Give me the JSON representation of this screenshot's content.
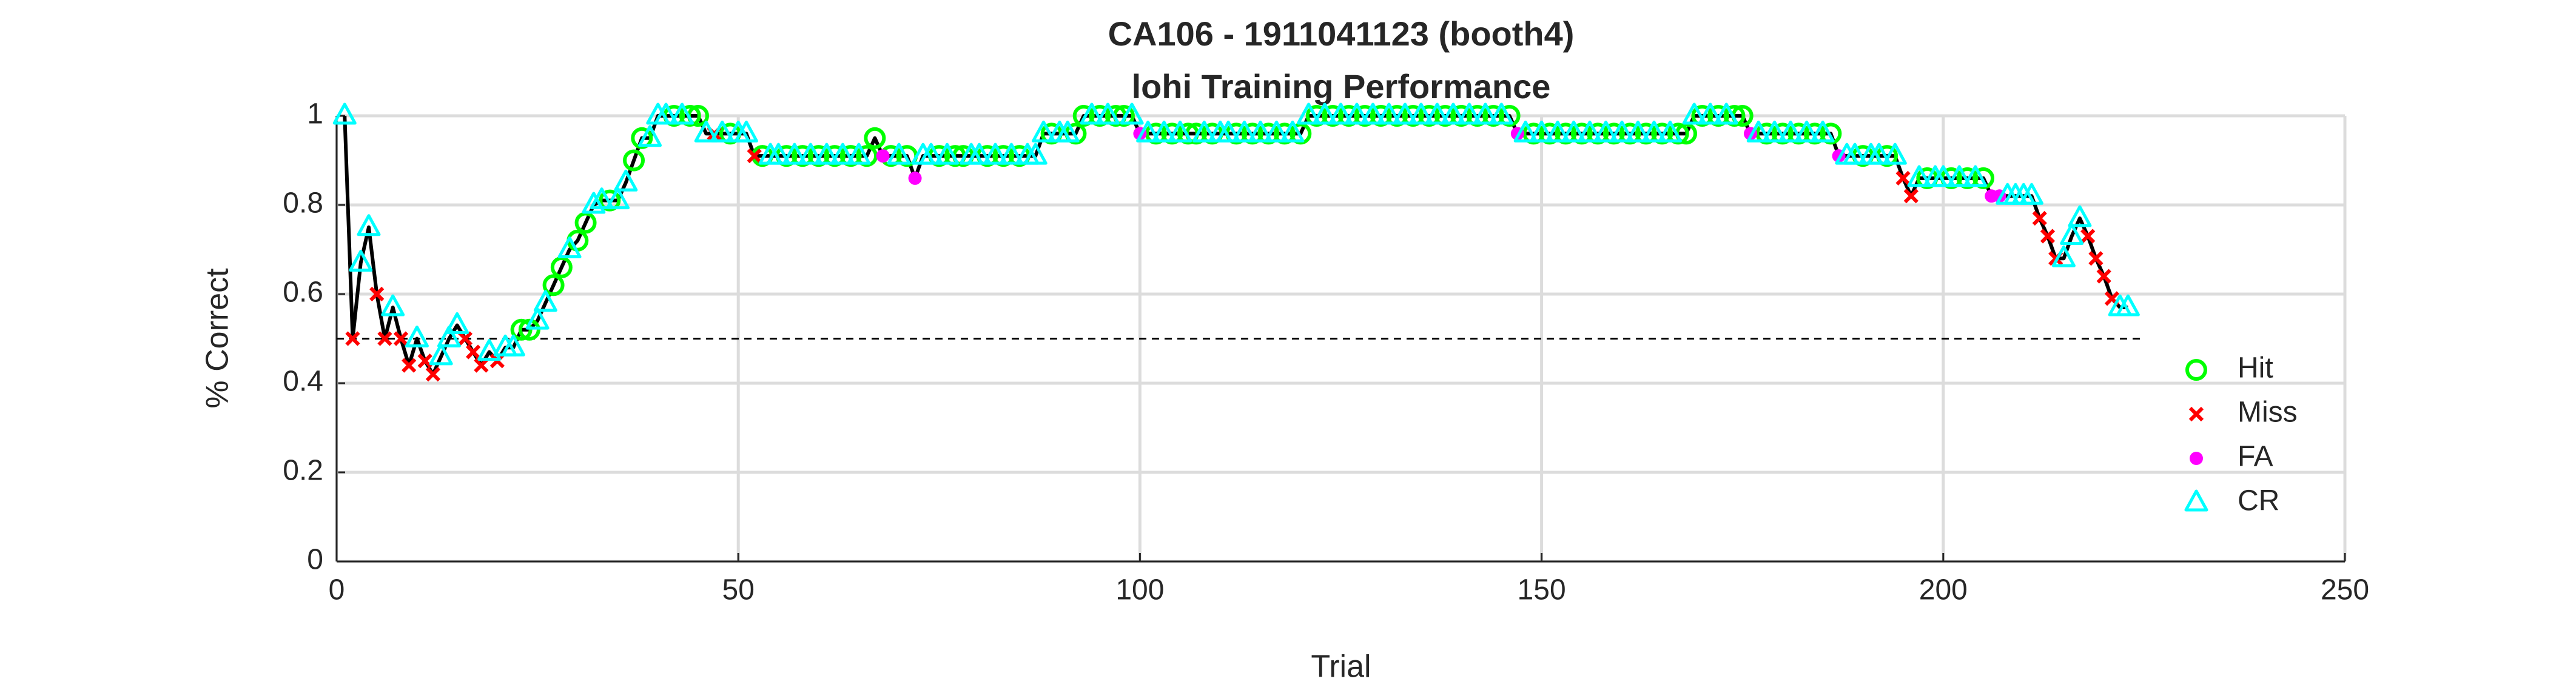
{
  "chart_data": {
    "type": "line",
    "title": [
      "CA106 - 1911041123 (booth4)",
      "lohi Training Performance"
    ],
    "xlabel": "Trial",
    "ylabel": "% Correct",
    "xlim": [
      0,
      250
    ],
    "ylim": [
      0,
      1
    ],
    "xticks": [
      0,
      50,
      100,
      150,
      200,
      250
    ],
    "yticks": [
      0,
      0.2,
      0.4,
      0.6,
      0.8,
      1
    ],
    "grid": true,
    "legend_location": "southeast",
    "line": {
      "color": "#000000",
      "x": [
        1,
        2,
        3,
        4,
        5,
        6,
        7,
        8,
        9,
        10,
        11,
        12,
        13,
        14,
        15,
        16,
        17,
        18,
        19,
        20,
        21,
        22,
        23,
        24,
        25,
        26,
        27,
        28,
        29,
        30,
        31,
        32,
        33,
        34,
        35,
        36,
        37,
        38,
        39,
        40,
        41,
        42,
        43,
        44,
        45,
        46,
        47,
        48,
        49,
        50,
        51,
        52,
        53,
        54,
        55,
        56,
        57,
        58,
        59,
        60,
        61,
        62,
        63,
        64,
        65,
        66,
        67,
        68,
        69,
        70,
        71,
        72,
        73,
        74,
        75,
        76,
        77,
        78,
        79,
        80,
        81,
        82,
        83,
        84,
        85,
        86,
        87,
        88,
        89,
        90,
        91,
        92,
        93,
        94,
        95,
        96,
        97,
        98,
        99,
        100,
        101,
        102,
        103,
        104,
        105,
        106,
        107,
        108,
        109,
        110,
        111,
        112,
        113,
        114,
        115,
        116,
        117,
        118,
        119,
        120,
        121,
        122,
        123,
        124,
        125,
        126,
        127,
        128,
        129,
        130,
        131,
        132,
        133,
        134,
        135,
        136,
        137,
        138,
        139,
        140,
        141,
        142,
        143,
        144,
        145,
        146,
        147,
        148,
        149,
        150,
        151,
        152,
        153,
        154,
        155,
        156,
        157,
        158,
        159,
        160,
        161,
        162,
        163,
        164,
        165,
        166,
        167,
        168,
        169,
        170,
        171,
        172,
        173,
        174,
        175,
        176,
        177,
        178,
        179,
        180,
        181,
        182,
        183,
        184,
        185,
        186,
        187,
        188,
        189,
        190,
        191,
        192,
        193,
        194,
        195,
        196,
        197,
        198,
        199,
        200,
        201,
        202,
        203,
        204,
        205,
        206,
        207,
        208,
        209,
        210,
        211,
        212,
        213,
        214,
        215,
        216,
        217,
        218,
        219,
        220,
        221,
        222,
        223
      ],
      "values": [
        1,
        0.5,
        0.67,
        0.75,
        0.6,
        0.5,
        0.57,
        0.5,
        0.44,
        0.5,
        0.45,
        0.42,
        0.46,
        0.5,
        0.53,
        0.5,
        0.47,
        0.44,
        0.47,
        0.45,
        0.48,
        0.48,
        0.52,
        0.52,
        0.54,
        0.58,
        0.62,
        0.66,
        0.7,
        0.72,
        0.76,
        0.8,
        0.81,
        0.81,
        0.81,
        0.85,
        0.9,
        0.95,
        0.95,
        1,
        1,
        1,
        1,
        1,
        1,
        0.96,
        0.96,
        0.96,
        0.96,
        0.96,
        0.96,
        0.91,
        0.91,
        0.91,
        0.91,
        0.91,
        0.91,
        0.91,
        0.91,
        0.91,
        0.91,
        0.91,
        0.91,
        0.91,
        0.91,
        0.91,
        0.95,
        0.91,
        0.91,
        0.91,
        0.91,
        0.86,
        0.91,
        0.91,
        0.91,
        0.91,
        0.91,
        0.91,
        0.91,
        0.91,
        0.91,
        0.91,
        0.91,
        0.91,
        0.91,
        0.91,
        0.91,
        0.96,
        0.96,
        0.96,
        0.96,
        0.96,
        1,
        1,
        1,
        1,
        1,
        1,
        1,
        0.96,
        0.96,
        0.96,
        0.96,
        0.96,
        0.96,
        0.96,
        0.96,
        0.96,
        0.96,
        0.96,
        0.96,
        0.96,
        0.96,
        0.96,
        0.96,
        0.96,
        0.96,
        0.96,
        0.96,
        0.96,
        1,
        1,
        1,
        1,
        1,
        1,
        1,
        1,
        1,
        1,
        1,
        1,
        1,
        1,
        1,
        1,
        1,
        1,
        1,
        1,
        1,
        1,
        1,
        1,
        1,
        1,
        0.96,
        0.96,
        0.96,
        0.96,
        0.96,
        0.96,
        0.96,
        0.96,
        0.96,
        0.96,
        0.96,
        0.96,
        0.96,
        0.96,
        0.96,
        0.96,
        0.96,
        0.96,
        0.96,
        0.96,
        0.96,
        0.96,
        1,
        1,
        1,
        1,
        1,
        1,
        1,
        0.96,
        0.96,
        0.96,
        0.96,
        0.96,
        0.96,
        0.96,
        0.96,
        0.96,
        0.96,
        0.96,
        0.91,
        0.91,
        0.91,
        0.91,
        0.91,
        0.91,
        0.91,
        0.91,
        0.86,
        0.82,
        0.86,
        0.86,
        0.86,
        0.86,
        0.86,
        0.86,
        0.86,
        0.86,
        0.86,
        0.82,
        0.82,
        0.82,
        0.82,
        0.82,
        0.82,
        0.77,
        0.73,
        0.68,
        0.68,
        0.73,
        0.77,
        0.73,
        0.68,
        0.64,
        0.59,
        0.57,
        0.57
      ]
    },
    "reference_line": {
      "color": "#000000",
      "x": [
        0,
        225
      ],
      "values": [
        0.5,
        0.5
      ]
    },
    "series": [
      {
        "name": "Hit",
        "color": "#00ff00",
        "marker": "o",
        "x": [
          23,
          24,
          27,
          28,
          30,
          31,
          34,
          37,
          38,
          42,
          44,
          45,
          49,
          53,
          56,
          58,
          60,
          62,
          64,
          66,
          67,
          69,
          71,
          75,
          77,
          78,
          81,
          83,
          85,
          89,
          92,
          93,
          95,
          97,
          98,
          102,
          104,
          106,
          107,
          109,
          112,
          114,
          116,
          118,
          120,
          122,
          124,
          126,
          128,
          130,
          132,
          134,
          136,
          138,
          140,
          142,
          144,
          146,
          149,
          151,
          153,
          155,
          157,
          159,
          161,
          163,
          165,
          167,
          168,
          170,
          172,
          174,
          175,
          178,
          180,
          182,
          184,
          186,
          190,
          193,
          198,
          201,
          203,
          205
        ],
        "values": [
          0.52,
          0.52,
          0.62,
          0.66,
          0.72,
          0.76,
          0.81,
          0.9,
          0.95,
          1,
          1,
          1,
          0.96,
          0.91,
          0.91,
          0.91,
          0.91,
          0.91,
          0.91,
          0.91,
          0.95,
          0.91,
          0.91,
          0.91,
          0.91,
          0.91,
          0.91,
          0.91,
          0.91,
          0.96,
          0.96,
          1,
          1,
          1,
          1,
          0.96,
          0.96,
          0.96,
          0.96,
          0.96,
          0.96,
          0.96,
          0.96,
          0.96,
          0.96,
          1,
          1,
          1,
          1,
          1,
          1,
          1,
          1,
          1,
          1,
          1,
          1,
          1,
          0.96,
          0.96,
          0.96,
          0.96,
          0.96,
          0.96,
          0.96,
          0.96,
          0.96,
          0.96,
          0.96,
          1,
          1,
          1,
          1,
          0.96,
          0.96,
          0.96,
          0.96,
          0.96,
          0.91,
          0.91,
          0.86,
          0.86,
          0.86,
          0.86
        ]
      },
      {
        "name": "Miss",
        "color": "#ff0000",
        "marker": "x",
        "x": [
          2,
          5,
          6,
          8,
          9,
          11,
          12,
          16,
          17,
          18,
          20,
          47,
          52,
          195,
          196,
          212,
          213,
          214,
          218,
          219,
          220,
          221
        ],
        "values": [
          0.5,
          0.6,
          0.5,
          0.5,
          0.44,
          0.45,
          0.42,
          0.5,
          0.47,
          0.44,
          0.45,
          0.96,
          0.91,
          0.86,
          0.82,
          0.77,
          0.73,
          0.68,
          0.73,
          0.68,
          0.64,
          0.59
        ]
      },
      {
        "name": "FA",
        "color": "#ff00ff",
        "marker": "dot",
        "x": [
          68,
          72,
          100,
          147,
          176,
          187,
          206,
          207
        ],
        "values": [
          0.91,
          0.86,
          0.96,
          0.96,
          0.96,
          0.91,
          0.82,
          0.82
        ]
      },
      {
        "name": "CR",
        "color": "#00ffff",
        "marker": "^",
        "x": [
          1,
          3,
          4,
          7,
          10,
          13,
          14,
          15,
          19,
          21,
          22,
          25,
          26,
          29,
          32,
          33,
          35,
          36,
          39,
          40,
          41,
          43,
          46,
          48,
          50,
          51,
          54,
          55,
          57,
          59,
          61,
          63,
          65,
          70,
          73,
          74,
          76,
          79,
          80,
          82,
          84,
          86,
          87,
          88,
          90,
          91,
          94,
          96,
          99,
          101,
          103,
          105,
          108,
          110,
          111,
          113,
          115,
          117,
          119,
          121,
          123,
          125,
          127,
          129,
          131,
          133,
          135,
          137,
          139,
          141,
          143,
          145,
          148,
          150,
          152,
          154,
          156,
          158,
          160,
          162,
          164,
          166,
          169,
          171,
          173,
          177,
          179,
          181,
          183,
          185,
          188,
          189,
          191,
          192,
          194,
          197,
          199,
          200,
          202,
          204,
          208,
          209,
          210,
          211,
          215,
          216,
          217,
          222,
          223
        ],
        "values": [
          1,
          0.67,
          0.75,
          0.57,
          0.5,
          0.46,
          0.5,
          0.53,
          0.47,
          0.48,
          0.48,
          0.54,
          0.58,
          0.7,
          0.8,
          0.81,
          0.81,
          0.85,
          0.95,
          1,
          1,
          1,
          0.96,
          0.96,
          0.96,
          0.96,
          0.91,
          0.91,
          0.91,
          0.91,
          0.91,
          0.91,
          0.91,
          0.91,
          0.91,
          0.91,
          0.91,
          0.91,
          0.91,
          0.91,
          0.91,
          0.91,
          0.91,
          0.96,
          0.96,
          0.96,
          1,
          1,
          1,
          0.96,
          0.96,
          0.96,
          0.96,
          0.96,
          0.96,
          0.96,
          0.96,
          0.96,
          0.96,
          1,
          1,
          1,
          1,
          1,
          1,
          1,
          1,
          1,
          1,
          1,
          1,
          1,
          0.96,
          0.96,
          0.96,
          0.96,
          0.96,
          0.96,
          0.96,
          0.96,
          0.96,
          0.96,
          1,
          1,
          1,
          0.96,
          0.96,
          0.96,
          0.96,
          0.96,
          0.91,
          0.91,
          0.91,
          0.91,
          0.91,
          0.86,
          0.86,
          0.86,
          0.86,
          0.86,
          0.82,
          0.82,
          0.82,
          0.82,
          0.68,
          0.73,
          0.77,
          0.57,
          0.57
        ]
      }
    ]
  }
}
